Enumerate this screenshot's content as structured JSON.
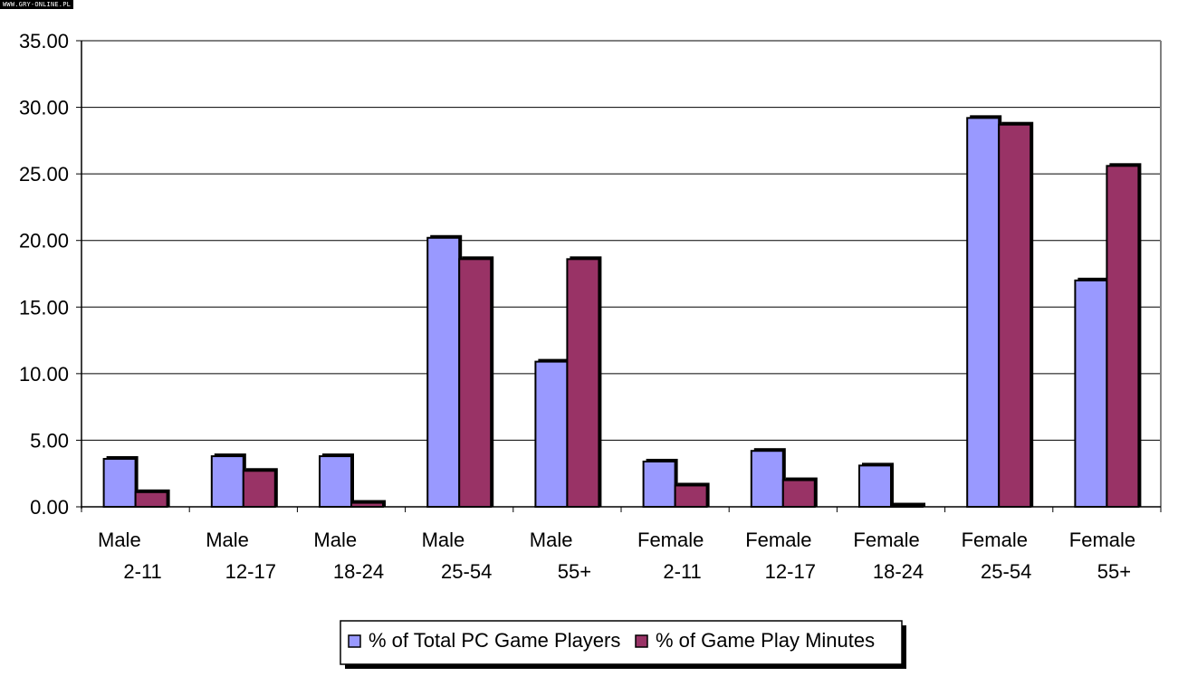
{
  "watermark": "WWW.GRY-ONLINE.PL",
  "chart_data": {
    "type": "bar",
    "title": "",
    "xlabel": "",
    "ylabel": "",
    "ylim": [
      0,
      35
    ],
    "yticks": [
      "0.00",
      "5.00",
      "10.00",
      "15.00",
      "20.00",
      "25.00",
      "30.00",
      "35.00"
    ],
    "grid": true,
    "legend_position": "bottom",
    "categories": [
      [
        "Male",
        "2-11"
      ],
      [
        "Male",
        "12-17"
      ],
      [
        "Male",
        "18-24"
      ],
      [
        "Male",
        "25-54"
      ],
      [
        "Male",
        "55+"
      ],
      [
        "Female",
        "2-11"
      ],
      [
        "Female",
        "12-17"
      ],
      [
        "Female",
        "18-24"
      ],
      [
        "Female",
        "25-54"
      ],
      [
        "Female",
        "55+"
      ]
    ],
    "series": [
      {
        "name": "% of Total PC Game Players",
        "color": "#9999ff",
        "values": [
          3.6,
          3.8,
          3.8,
          20.2,
          10.9,
          3.4,
          4.2,
          3.1,
          29.2,
          17.0
        ]
      },
      {
        "name": "% of Game Play Minutes",
        "color": "#993366",
        "values": [
          1.1,
          2.7,
          0.3,
          18.6,
          18.6,
          1.6,
          2.0,
          0.1,
          28.7,
          25.6
        ]
      }
    ]
  }
}
